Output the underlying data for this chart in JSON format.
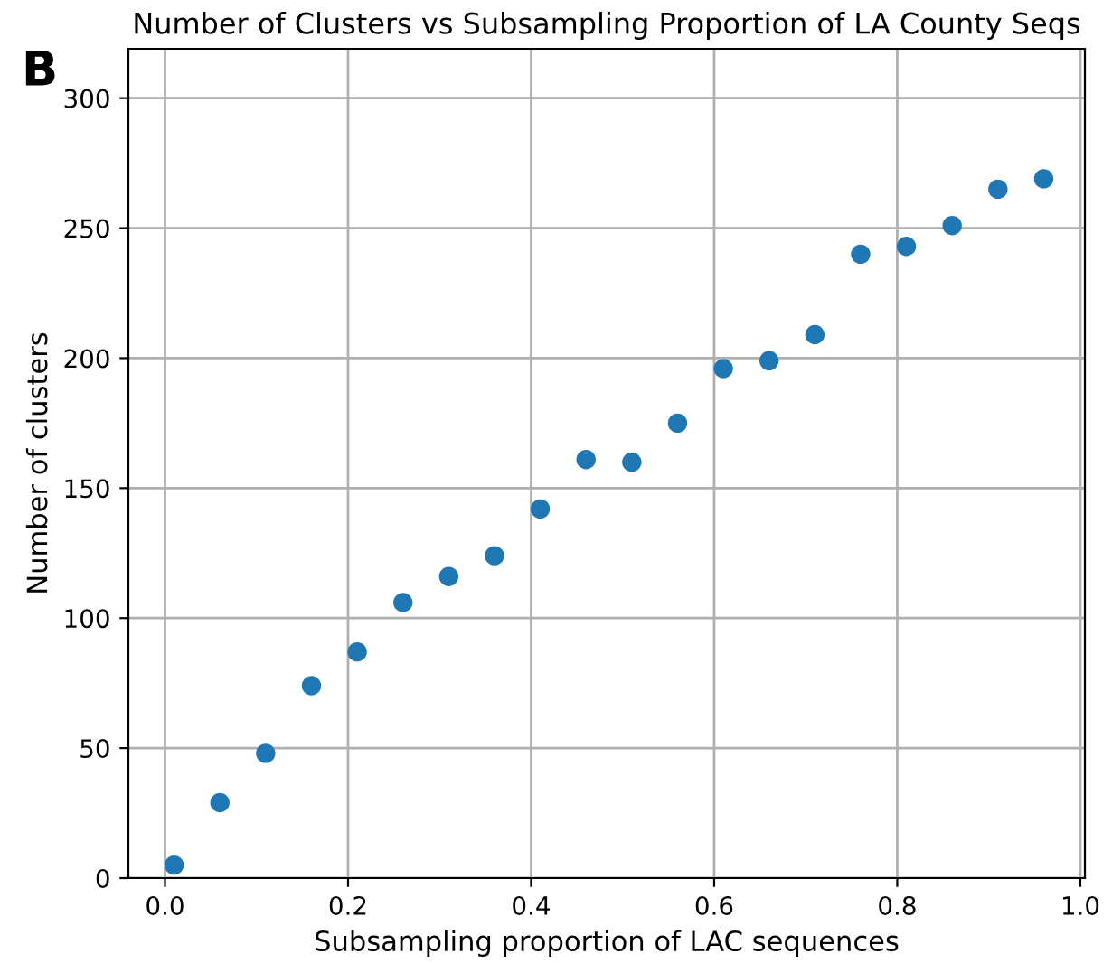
{
  "chart_data": {
    "type": "scatter",
    "title": "Number of Clusters vs Subsampling Proportion of LA County Seqs",
    "xlabel": "Subsampling proportion of LAC sequences",
    "ylabel": "Number of clusters",
    "annotations": [
      "B"
    ],
    "x": [
      0.01,
      0.06,
      0.11,
      0.16,
      0.21,
      0.26,
      0.31,
      0.36,
      0.41,
      0.46,
      0.51,
      0.56,
      0.61,
      0.66,
      0.71,
      0.76,
      0.81,
      0.86,
      0.91,
      0.96
    ],
    "series": [
      {
        "color": "#1f77b4",
        "values": [
          5,
          29,
          48,
          74,
          87,
          106,
          116,
          124,
          142,
          161,
          160,
          175,
          196,
          199,
          209,
          240,
          243,
          251,
          265,
          269
        ]
      }
    ],
    "xlim": [
      -0.04,
      1.005
    ],
    "ylim": [
      0,
      319
    ],
    "xticks": [
      {
        "value": 0.0,
        "label": "0.0"
      },
      0.2,
      0.4,
      0.6,
      0.8,
      {
        "value": 1.0,
        "label": "1.0"
      }
    ],
    "yticks": [
      0,
      50,
      100,
      150,
      200,
      250,
      300
    ],
    "grid": true,
    "marker": "circle"
  }
}
